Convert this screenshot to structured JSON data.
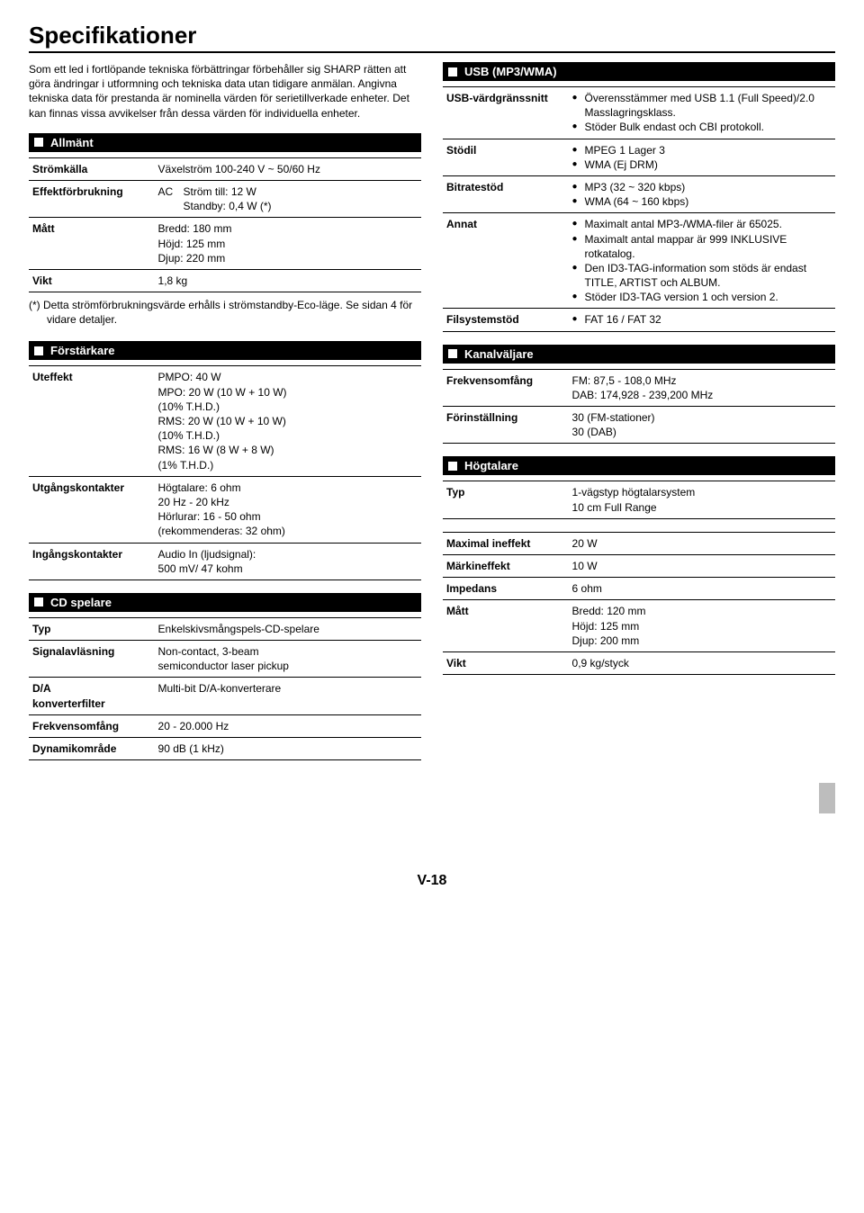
{
  "title": "Specifikationer",
  "intro": "Som ett led i fortlöpande tekniska förbättringar förbehåller sig SHARP rätten att göra ändringar i utformning och tekniska data utan tidigare anmälan. Angivna tekniska data för prestanda är nominella värden för serietillverkade enheter. Det kan finnas vissa avvikelser från dessa värden för individuella enheter.",
  "sections": {
    "allmant": {
      "header": "Allmänt",
      "rows": {
        "stromkalla": {
          "label": "Strömkälla",
          "value": "Växelström 100-240 V ~ 50/60 Hz"
        },
        "effekt": {
          "label": "Effektförbrukning",
          "ac": "AC",
          "value": "Ström till: 12 W\nStandby: 0,4 W (*)"
        },
        "matt": {
          "label": "Mått",
          "value": "Bredd: 180 mm\nHöjd: 125 mm\nDjup: 220 mm"
        },
        "vikt": {
          "label": "Vikt",
          "value": "1,8 kg"
        }
      },
      "footnote": "(*) Detta strömförbrukningsvärde erhålls i strömstandby-Eco-läge. Se sidan 4 för vidare detaljer."
    },
    "forstarkare": {
      "header": "Förstärkare",
      "rows": {
        "uteffekt": {
          "label": "Uteffekt",
          "value": "PMPO: 40 W\nMPO: 20 W (10 W + 10 W)\n(10% T.H.D.)\nRMS: 20 W (10 W + 10 W)\n(10% T.H.D.)\nRMS: 16 W (8 W + 8 W)\n(1% T.H.D.)"
        },
        "utgang": {
          "label": "Utgångskontakter",
          "value": "Högtalare: 6 ohm\n20 Hz - 20 kHz\nHörlurar: 16 - 50 ohm\n(rekommenderas: 32 ohm)"
        },
        "ingang": {
          "label": "Ingångskontakter",
          "value": "Audio In (ljudsignal):\n500 mV/ 47 kohm"
        }
      }
    },
    "cd": {
      "header": "CD spelare",
      "rows": {
        "typ": {
          "label": "Typ",
          "value": "Enkelskivsmångspels-CD-spelare"
        },
        "signal": {
          "label": "Signalavläsning",
          "value": "Non-contact, 3-beam\nsemiconductor laser pickup"
        },
        "da": {
          "label": "D/A\nkonverterfilter",
          "value": "Multi-bit D/A-konverterare"
        },
        "frekv": {
          "label": "Frekvensomfång",
          "value": "20 - 20.000 Hz"
        },
        "dyn": {
          "label": "Dynamikområde",
          "value": "90 dB (1 kHz)"
        }
      }
    },
    "usb": {
      "header": "USB (MP3/WMA)",
      "rows": {
        "host": {
          "label": "USB-värdgränssnitt",
          "bullets": [
            "Överensstämmer med USB 1.1 (Full Speed)/2.0 Masslagringsklass.",
            "Stöder Bulk endast och CBI protokoll."
          ]
        },
        "stodil": {
          "label": "Stödil",
          "bullets": [
            "MPEG 1 Lager 3",
            "WMA (Ej DRM)"
          ]
        },
        "bitrate": {
          "label": "Bitratestöd",
          "bullets": [
            "MP3 (32 ~ 320 kbps)",
            "WMA (64 ~ 160 kbps)"
          ]
        },
        "annat": {
          "label": "Annat",
          "bullets": [
            "Maximalt antal MP3-/WMA-filer är 65025.",
            "Maximalt antal mappar är 999 INKLUSIVE rotkatalog.",
            "Den ID3-TAG-information som stöds är endast TITLE, ARTIST och ALBUM.",
            "Stöder ID3-TAG version 1 och version 2."
          ]
        },
        "fs": {
          "label": "Filsystemstöd",
          "bullets": [
            "FAT 16 / FAT 32"
          ]
        }
      }
    },
    "kanal": {
      "header": "Kanalväljare",
      "rows": {
        "frekv": {
          "label": "Frekvensomfång",
          "value": "FM: 87,5 - 108,0 MHz\nDAB: 174,928 - 239,200 MHz"
        },
        "forin": {
          "label": "Förinställning",
          "value": "30 (FM-stationer)\n30 (DAB)"
        }
      }
    },
    "hogtalare": {
      "header": "Högtalare",
      "rows": {
        "typ": {
          "label": "Typ",
          "value": "1-vägstyp högtalarsystem\n10 cm Full Range"
        },
        "maxin": {
          "label": "Maximal ineffekt",
          "value": "20 W"
        },
        "markin": {
          "label": "Märkineffekt",
          "value": "10 W"
        },
        "imp": {
          "label": "Impedans",
          "value": "6 ohm"
        },
        "matt": {
          "label": "Mått",
          "value": "Bredd: 120 mm\nHöjd: 125 mm\nDjup: 200 mm"
        },
        "vikt": {
          "label": "Vikt",
          "value": "0,9 kg/styck"
        }
      }
    }
  },
  "pagenum": "V-18"
}
